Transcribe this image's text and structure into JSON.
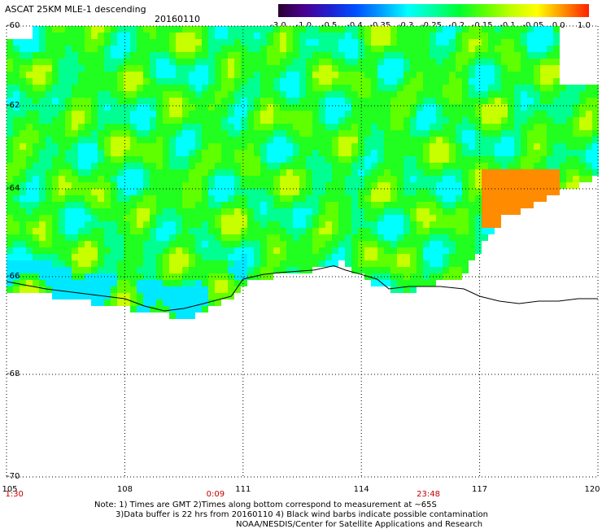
{
  "header": {
    "title": "ASCAT 25KM MLE-1 descending",
    "date": "20160110"
  },
  "colorbar": {
    "labels": [
      "-3.0",
      "-1.0",
      "-0.5",
      "-0.4",
      "-0.35",
      "-0.3",
      "-0.25",
      "-0.2",
      "-0.15",
      "-0.1",
      "-0.05",
      "0.0",
      "1.0"
    ],
    "colors": [
      "#2a0030",
      "#4a0090",
      "#2020d0",
      "#0050ff",
      "#00a0ff",
      "#00ffff",
      "#00ffa0",
      "#00ff30",
      "#60ff00",
      "#c0ff00",
      "#ffff00",
      "#ff9000",
      "#ff2000"
    ]
  },
  "map": {
    "lat_labels": [
      "-60",
      "-62",
      "-64",
      "-66",
      "-68",
      "-70"
    ],
    "lon_labels": [
      "105",
      "108",
      "111",
      "114",
      "117",
      "120"
    ],
    "lat_range": [
      -70,
      -60
    ],
    "lon_range": [
      105,
      120
    ],
    "time_labels": [
      "1:30",
      "0:09",
      "23:48"
    ],
    "time_lons": [
      105.2,
      110.3,
      115.7
    ]
  },
  "notes": {
    "line1": "Note: 1) Times are GMT 2)Times along bottom correspond to measurement at ~65S",
    "line2": "3)Data buffer is 22 hrs from 20160110 4) Black wind barbs indicate possible contamination",
    "line3": "NOAA/NESDIS/Center for Satellite Applications and Research"
  }
}
